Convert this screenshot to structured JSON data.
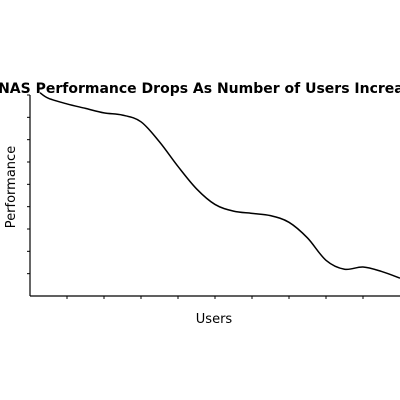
{
  "chart_data": {
    "type": "line",
    "title": "NAS Performance Drops As Number of Users Increases",
    "xlabel": "Users",
    "ylabel": "Performance",
    "grid": false,
    "legend": "none",
    "x_ticks": 10,
    "y_ticks": 9,
    "xlim": [
      0,
      10
    ],
    "ylim": [
      0,
      9
    ],
    "series": [
      {
        "x": [
          0,
          0.5,
          1,
          1.5,
          2,
          2.5,
          3,
          3.5,
          4,
          4.5,
          5,
          5.5,
          6,
          6.5,
          7,
          7.5,
          8,
          8.5,
          9,
          9.5,
          10
        ],
        "y": [
          9.1,
          8.85,
          8.6,
          8.4,
          8.2,
          8.1,
          7.8,
          6.9,
          5.8,
          4.8,
          4.1,
          3.8,
          3.7,
          3.6,
          3.3,
          2.6,
          1.6,
          1.2,
          1.3,
          1.1,
          0.8
        ]
      }
    ]
  }
}
